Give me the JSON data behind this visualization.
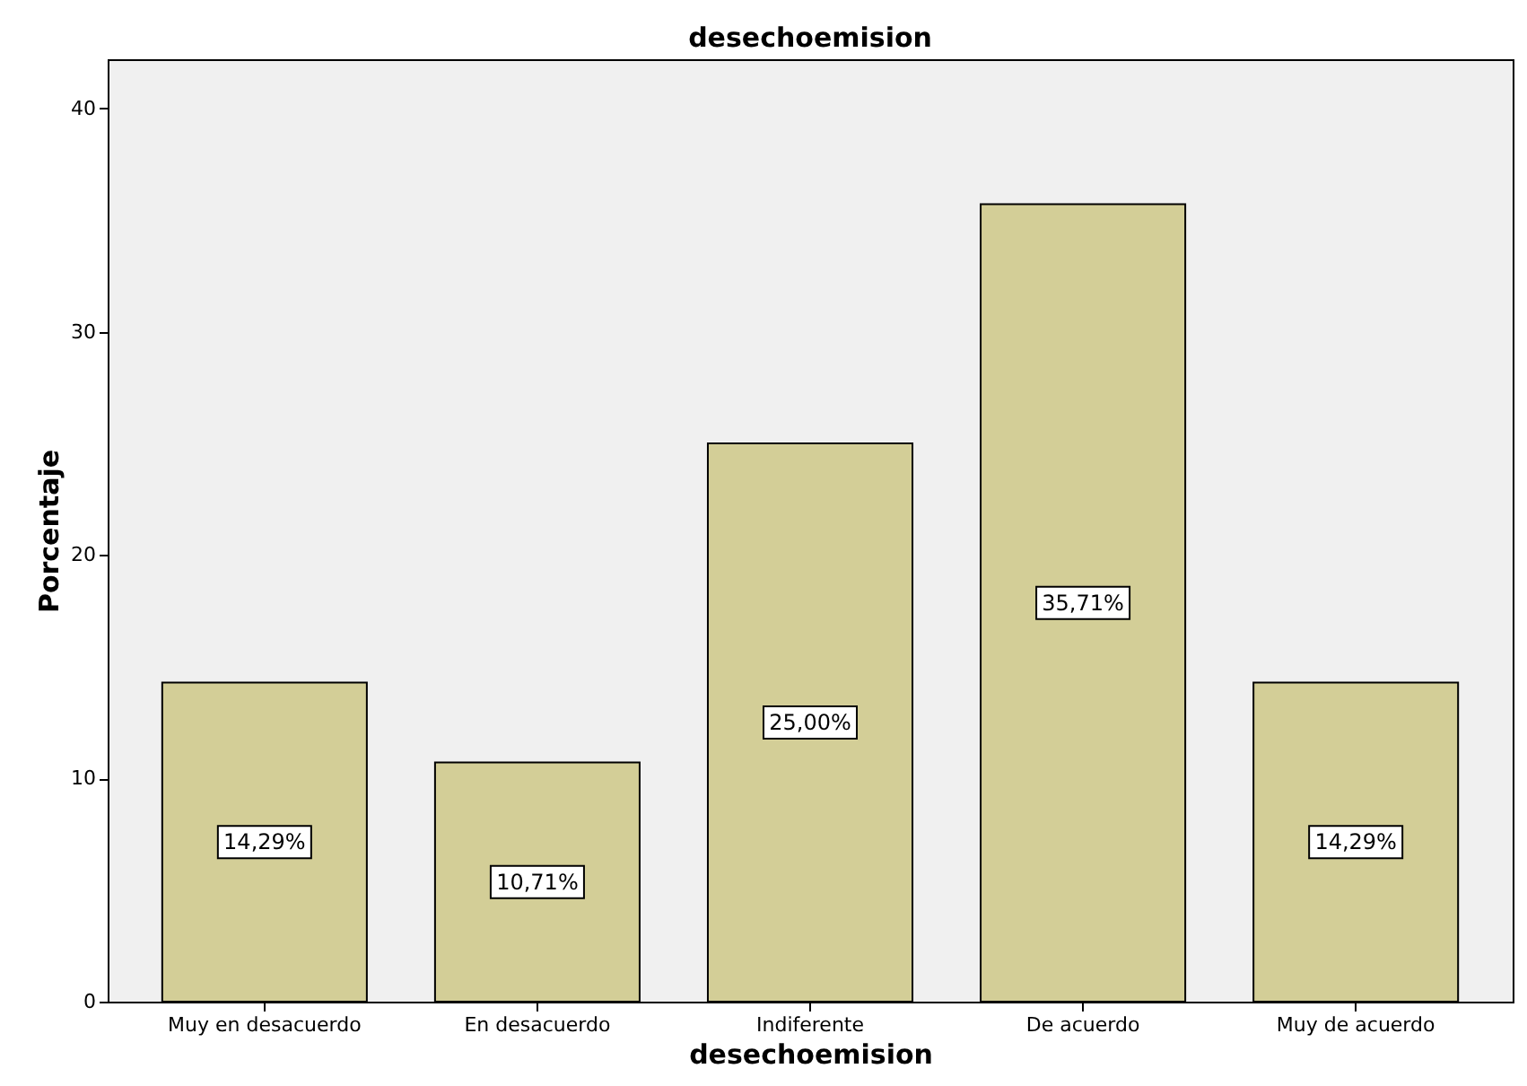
{
  "chart_data": {
    "type": "bar",
    "title": "desechoemision",
    "xlabel": "desechoemision",
    "ylabel": "Porcentaje",
    "categories": [
      "Muy en desacuerdo",
      "En desacuerdo",
      "Indiferente",
      "De acuerdo",
      "Muy de acuerdo"
    ],
    "values": [
      14.29,
      10.71,
      25.0,
      35.71,
      14.29
    ],
    "value_labels": [
      "14,29%",
      "10,71%",
      "25,00%",
      "35,71%",
      "14,29%"
    ],
    "color": "#d3ce97",
    "ylim": [
      0,
      42.2
    ],
    "yticks": [
      0,
      10,
      20,
      30,
      40
    ],
    "grid": false
  }
}
